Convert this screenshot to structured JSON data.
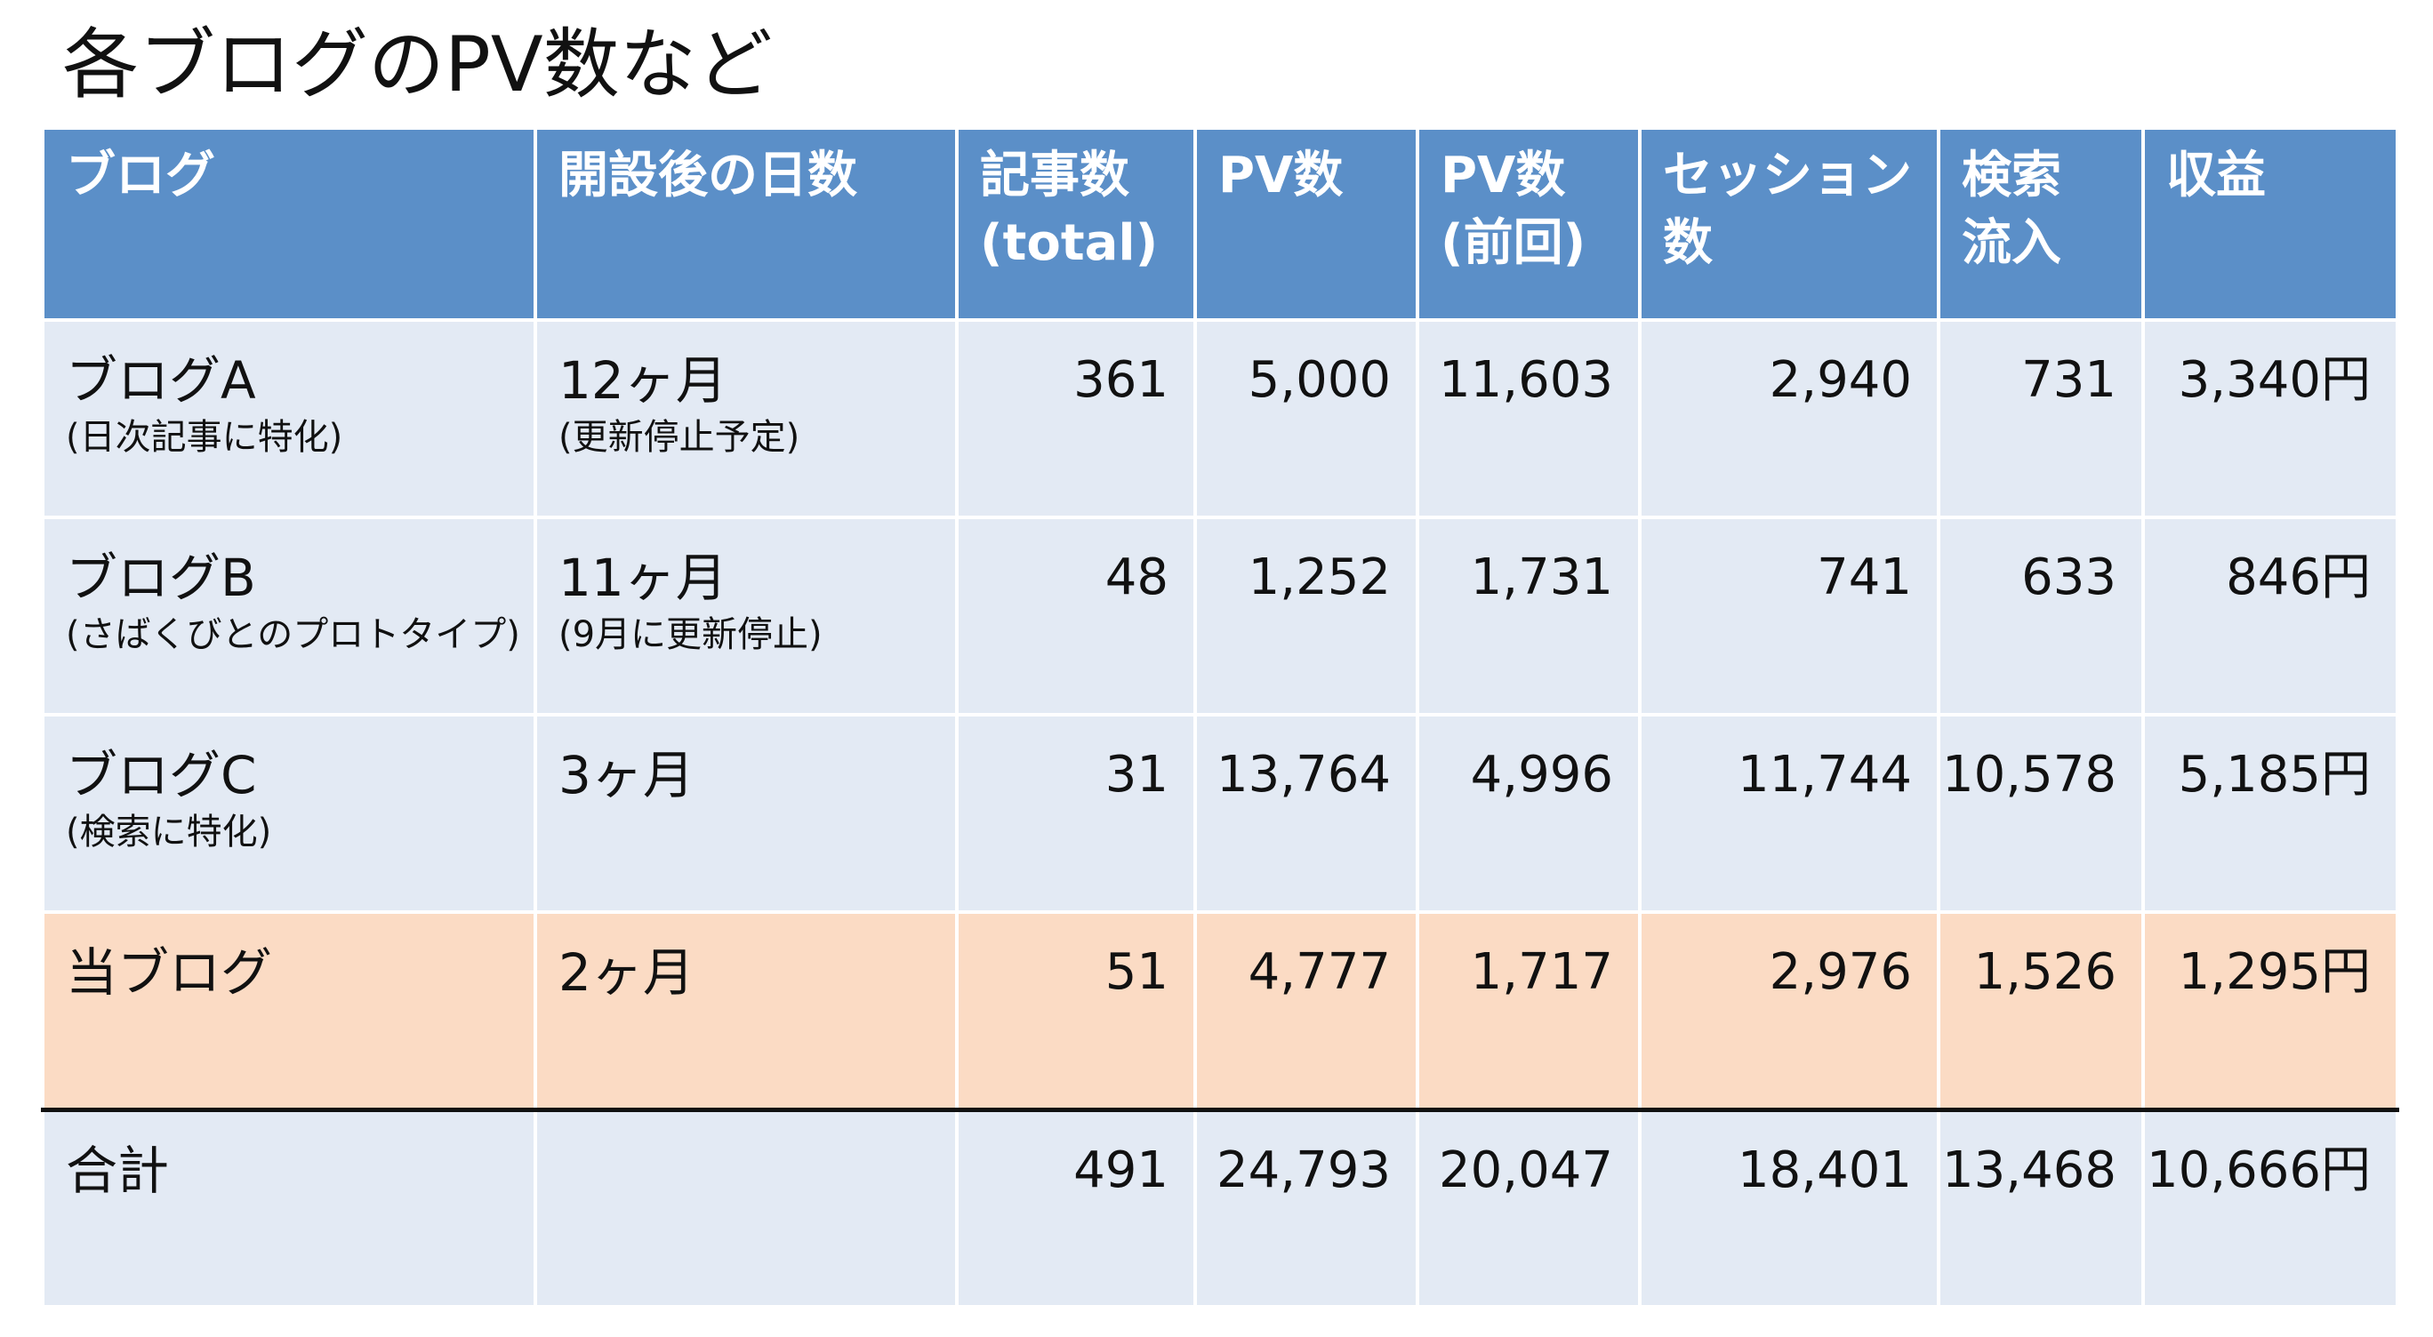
{
  "title": "各ブログのPV数など",
  "chart_data": {
    "type": "table",
    "title": "各ブログのPV数など",
    "columns": [
      {
        "key": "blog",
        "lines": [
          "ブログ"
        ]
      },
      {
        "key": "days",
        "lines": [
          "開設後の日数"
        ]
      },
      {
        "key": "articles",
        "lines": [
          "記事数",
          "(total)"
        ]
      },
      {
        "key": "pv",
        "lines": [
          "PV数"
        ]
      },
      {
        "key": "pv_prev",
        "lines": [
          "PV数",
          "(前回)"
        ]
      },
      {
        "key": "sessions",
        "lines": [
          "セッション",
          "数"
        ]
      },
      {
        "key": "search",
        "lines": [
          "検索",
          "流入"
        ]
      },
      {
        "key": "revenue",
        "lines": [
          "収益"
        ]
      }
    ],
    "rows": [
      {
        "blog": "ブログA",
        "blog_note": "(日次記事に特化)",
        "days": "12ヶ月",
        "days_note": "(更新停止予定)",
        "articles": "361",
        "pv": "5,000",
        "pv_prev": "11,603",
        "sessions": "2,940",
        "search": "731",
        "revenue": "3,340円"
      },
      {
        "blog": "ブログB",
        "blog_note": "(さばくびとのプロトタイプ)",
        "days": "11ヶ月",
        "days_note": "(9月に更新停止)",
        "articles": "48",
        "pv": "1,252",
        "pv_prev": "1,731",
        "sessions": "741",
        "search": "633",
        "revenue": "846円"
      },
      {
        "blog": "ブログC",
        "blog_note": "(検索に特化)",
        "days": "3ヶ月",
        "days_note": "",
        "articles": "31",
        "pv": "13,764",
        "pv_prev": "4,996",
        "sessions": "11,744",
        "search": "10,578",
        "revenue": "5,185円"
      },
      {
        "blog": "当ブログ",
        "blog_note": "",
        "days": "2ヶ月",
        "days_note": "",
        "articles": "51",
        "pv": "4,777",
        "pv_prev": "1,717",
        "sessions": "2,976",
        "search": "1,526",
        "revenue": "1,295円"
      }
    ],
    "total": {
      "blog": "合計",
      "days": "",
      "articles": "491",
      "pv": "24,793",
      "pv_prev": "20,047",
      "sessions": "18,401",
      "search": "13,468",
      "revenue": "10,666円"
    }
  },
  "colors": {
    "header_bg": "#5b8fc8",
    "header_text": "#ffffff",
    "row_bg": "#e3eaf4",
    "highlight_row_bg": "#fbdbc4",
    "total_rule": "#111111"
  }
}
